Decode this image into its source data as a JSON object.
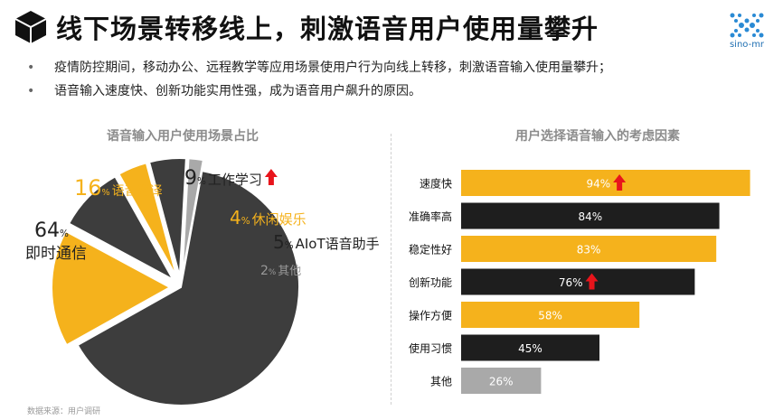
{
  "header": {
    "title": "线下场景转移线上，刺激语音用户使用量攀升",
    "logo_text": "sino-mr"
  },
  "bullets": [
    "疫情防控期间，移动办公、远程教学等应用场景使用户行为向线上转移，刺激语音输入使用量攀升；",
    "语音输入速度快、创新功能实用性强，成为语音用户飙升的原因。"
  ],
  "source": "数据来源：用户调研",
  "colors": {
    "dark": "#3d3d3d",
    "gold": "#f5b21c",
    "black": "#1e1e1e",
    "gray": "#a9a9a9",
    "red": "#e8141b"
  },
  "chart_data": [
    {
      "type": "pie",
      "title": "语音输入用户使用场景占比",
      "unit": "%",
      "slices": [
        {
          "label": "即时通信",
          "value": 64,
          "color": "#3d3d3d",
          "up": false
        },
        {
          "label": "语音翻译",
          "value": 16,
          "color": "#f5b21c",
          "up": false
        },
        {
          "label": "工作学习",
          "value": 9,
          "color": "#3d3d3d",
          "up": true
        },
        {
          "label": "休闲娱乐",
          "value": 4,
          "color": "#f5b21c",
          "up": false
        },
        {
          "label": "AIoT语音助手",
          "value": 5,
          "color": "#3d3d3d",
          "up": false
        },
        {
          "label": "其他",
          "value": 2,
          "color": "#a9a9a9",
          "up": false
        }
      ]
    },
    {
      "type": "bar",
      "orientation": "horizontal",
      "title": "用户选择语音输入的考虑因素",
      "categories": [
        "速度快",
        "准确率高",
        "稳定性好",
        "创新功能",
        "操作方便",
        "使用习惯",
        "其他"
      ],
      "values": [
        94,
        84,
        83,
        76,
        58,
        45,
        26
      ],
      "unit": "%",
      "colors": [
        "#f5b21c",
        "#1e1e1e",
        "#f5b21c",
        "#1e1e1e",
        "#f5b21c",
        "#1e1e1e",
        "#a9a9a9"
      ],
      "up": [
        true,
        false,
        false,
        true,
        false,
        false,
        false
      ],
      "xlim": [
        0,
        100
      ]
    }
  ]
}
